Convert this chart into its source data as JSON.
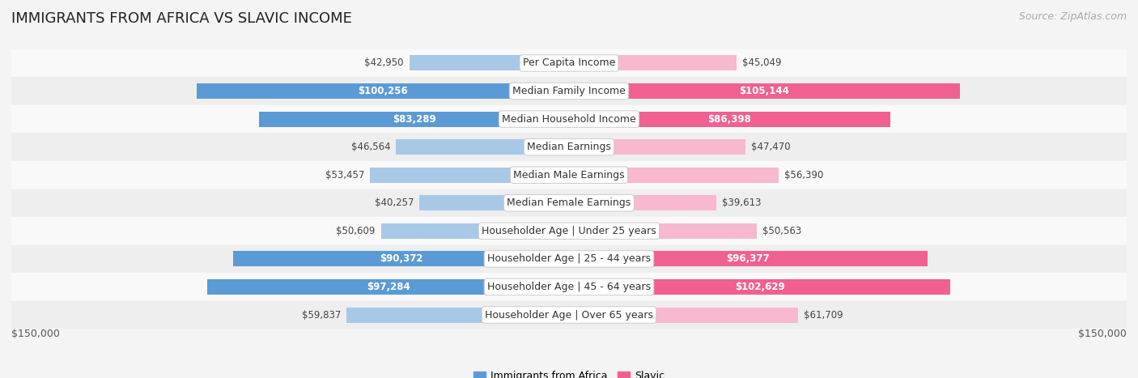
{
  "title": "IMMIGRANTS FROM AFRICA VS SLAVIC INCOME",
  "source": "Source: ZipAtlas.com",
  "categories": [
    "Per Capita Income",
    "Median Family Income",
    "Median Household Income",
    "Median Earnings",
    "Median Male Earnings",
    "Median Female Earnings",
    "Householder Age | Under 25 years",
    "Householder Age | 25 - 44 years",
    "Householder Age | 45 - 64 years",
    "Householder Age | Over 65 years"
  ],
  "africa_values": [
    42950,
    100256,
    83289,
    46564,
    53457,
    40257,
    50609,
    90372,
    97284,
    59837
  ],
  "slavic_values": [
    45049,
    105144,
    86398,
    47470,
    56390,
    39613,
    50563,
    96377,
    102629,
    61709
  ],
  "africa_labels": [
    "$42,950",
    "$100,256",
    "$83,289",
    "$46,564",
    "$53,457",
    "$40,257",
    "$50,609",
    "$90,372",
    "$97,284",
    "$59,837"
  ],
  "slavic_labels": [
    "$45,049",
    "$105,144",
    "$86,398",
    "$47,470",
    "$56,390",
    "$39,613",
    "$50,563",
    "$96,377",
    "$102,629",
    "$61,709"
  ],
  "africa_color_light": "#a8c8e8",
  "africa_color_solid": "#5b9bd5",
  "slavic_color_light": "#f7b8d0",
  "slavic_color_solid": "#f06090",
  "threshold": 70000,
  "max_value": 150000,
  "x_label_left": "$150,000",
  "x_label_right": "$150,000",
  "legend_africa": "Immigrants from Africa",
  "legend_slavic": "Slavic",
  "background_color": "#f4f4f4",
  "row_colors": [
    "#f9f9f9",
    "#eeeeee"
  ],
  "title_fontsize": 13,
  "source_fontsize": 9,
  "bar_label_fontsize": 8.5,
  "category_fontsize": 9,
  "axis_label_fontsize": 9
}
